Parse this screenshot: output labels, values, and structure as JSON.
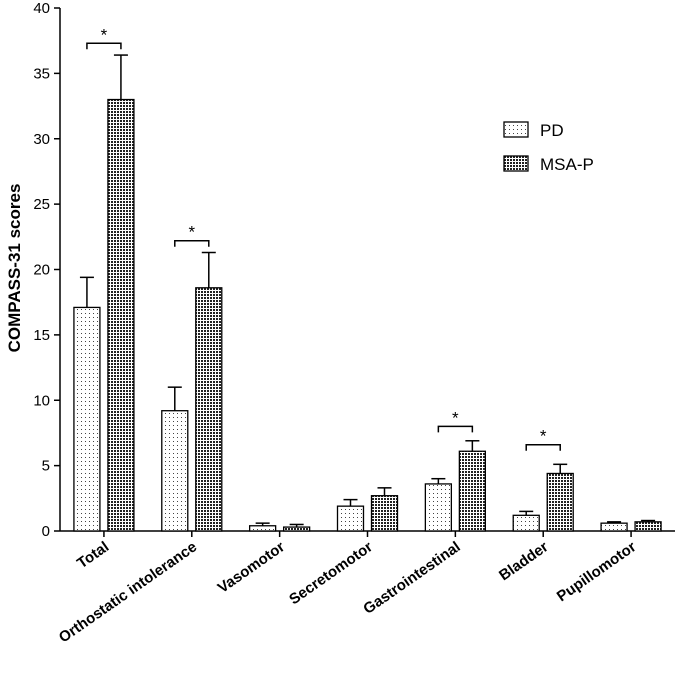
{
  "chart_data": {
    "type": "bar",
    "title": "",
    "xlabel": "",
    "ylabel": "COMPASS-31 scores",
    "ylim": [
      0,
      40
    ],
    "yticks": [
      0,
      5,
      10,
      15,
      20,
      25,
      30,
      35,
      40
    ],
    "grid": false,
    "legend_position": "right",
    "categories": [
      "Total",
      "Orthostatic intolerance",
      "Vasomotor",
      "Secretomotor",
      "Gastrointestinal",
      "Bladder",
      "Pupillomotor"
    ],
    "series": [
      {
        "name": "PD",
        "pattern": "dots",
        "values": [
          17.1,
          9.2,
          0.4,
          1.9,
          3.6,
          1.2,
          0.6
        ],
        "errors": [
          2.3,
          1.8,
          0.2,
          0.5,
          0.4,
          0.3,
          0.1
        ]
      },
      {
        "name": "MSA-P",
        "pattern": "checker",
        "values": [
          33.0,
          18.6,
          0.3,
          2.7,
          6.1,
          4.4,
          0.7
        ],
        "errors": [
          3.4,
          2.7,
          0.2,
          0.6,
          0.8,
          0.7,
          0.1
        ]
      }
    ],
    "significance": [
      {
        "category_index": 0,
        "label": "*",
        "bracket_y": 37.3
      },
      {
        "category_index": 1,
        "label": "*",
        "bracket_y": 22.2
      },
      {
        "category_index": 4,
        "label": "*",
        "bracket_y": 8.0
      },
      {
        "category_index": 5,
        "label": "*",
        "bracket_y": 6.6
      }
    ]
  }
}
